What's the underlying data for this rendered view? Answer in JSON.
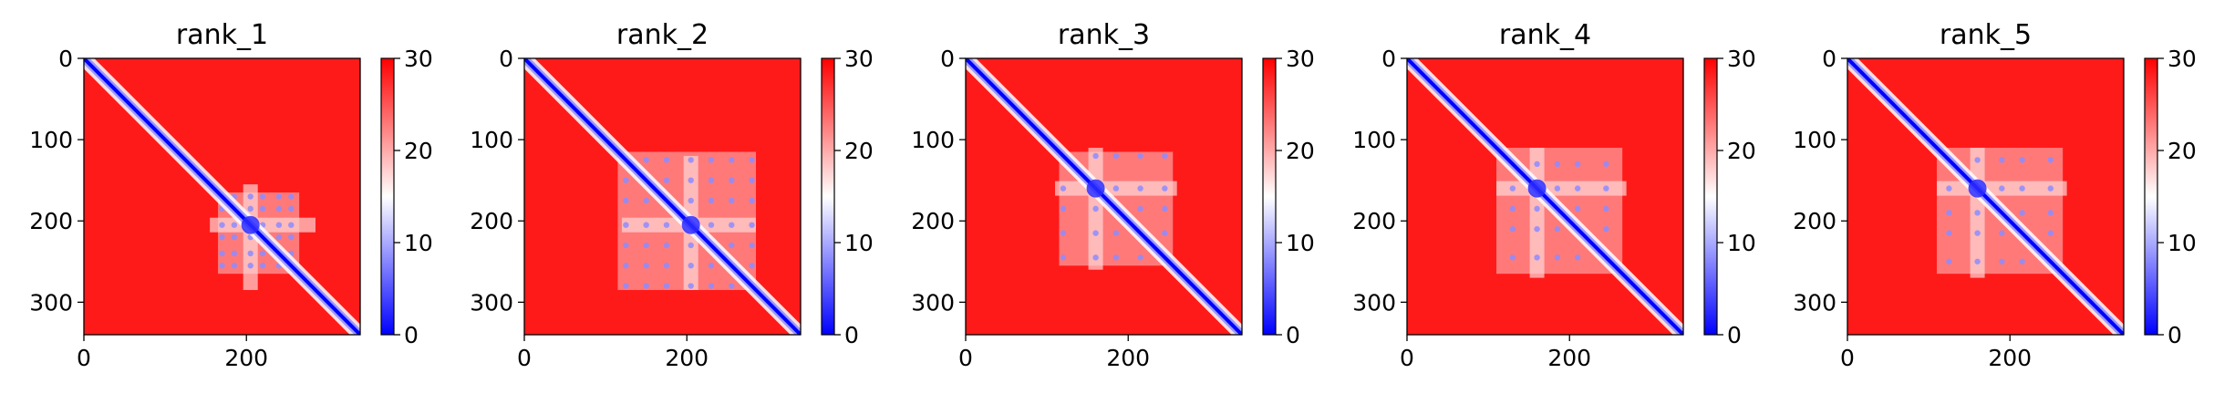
{
  "chart_data": [
    {
      "type": "heatmap",
      "title": "rank_1",
      "x_ticks": [
        "0",
        "200"
      ],
      "y_ticks": [
        "0",
        "100",
        "200",
        "300"
      ],
      "colorbar_ticks": [
        "0",
        "10",
        "20",
        "30"
      ],
      "value_range": [
        0,
        30
      ],
      "matrix_size": 340,
      "colormap": [
        "#0000ff",
        "#ffffff",
        "#ff0000"
      ],
      "features": {
        "cross_center": 205,
        "cross_min": 155,
        "cross_max": 285,
        "domain": [
          165,
          265
        ],
        "dots": [
          170,
          185,
          205,
          220,
          240,
          255
        ]
      }
    },
    {
      "type": "heatmap",
      "title": "rank_2",
      "x_ticks": [
        "0",
        "200"
      ],
      "y_ticks": [
        "0",
        "100",
        "200",
        "300"
      ],
      "colorbar_ticks": [
        "0",
        "10",
        "20",
        "30"
      ],
      "value_range": [
        0,
        30
      ],
      "matrix_size": 340,
      "colormap": [
        "#0000ff",
        "#ffffff",
        "#ff0000"
      ],
      "features": {
        "cross_center": 205,
        "cross_min": 120,
        "cross_max": 285,
        "domain": [
          115,
          285
        ],
        "dots": [
          125,
          150,
          175,
          205,
          230,
          255,
          280
        ]
      }
    },
    {
      "type": "heatmap",
      "title": "rank_3",
      "x_ticks": [
        "0",
        "200"
      ],
      "y_ticks": [
        "0",
        "100",
        "200",
        "300"
      ],
      "colorbar_ticks": [
        "0",
        "10",
        "20",
        "30"
      ],
      "value_range": [
        0,
        30
      ],
      "matrix_size": 340,
      "colormap": [
        "#0000ff",
        "#ffffff",
        "#ff0000"
      ],
      "features": {
        "cross_center": 160,
        "cross_min": 110,
        "cross_max": 260,
        "domain": [
          115,
          255
        ],
        "dots": [
          120,
          160,
          185,
          215,
          245
        ]
      }
    },
    {
      "type": "heatmap",
      "title": "rank_4",
      "x_ticks": [
        "0",
        "200"
      ],
      "y_ticks": [
        "0",
        "100",
        "200",
        "300"
      ],
      "colorbar_ticks": [
        "0",
        "10",
        "20",
        "30"
      ],
      "value_range": [
        0,
        30
      ],
      "matrix_size": 340,
      "colormap": [
        "#0000ff",
        "#ffffff",
        "#ff0000"
      ],
      "features": {
        "cross_center": 160,
        "cross_min": 110,
        "cross_max": 270,
        "domain": [
          110,
          265
        ],
        "dots": [
          130,
          160,
          185,
          210,
          245
        ]
      }
    },
    {
      "type": "heatmap",
      "title": "rank_5",
      "x_ticks": [
        "0",
        "200"
      ],
      "y_ticks": [
        "0",
        "100",
        "200",
        "300"
      ],
      "colorbar_ticks": [
        "0",
        "10",
        "20",
        "30"
      ],
      "value_range": [
        0,
        30
      ],
      "matrix_size": 340,
      "colormap": [
        "#0000ff",
        "#ffffff",
        "#ff0000"
      ],
      "features": {
        "cross_center": 160,
        "cross_min": 110,
        "cross_max": 270,
        "domain": [
          110,
          265
        ],
        "dots": [
          125,
          160,
          190,
          215,
          250
        ]
      }
    }
  ]
}
